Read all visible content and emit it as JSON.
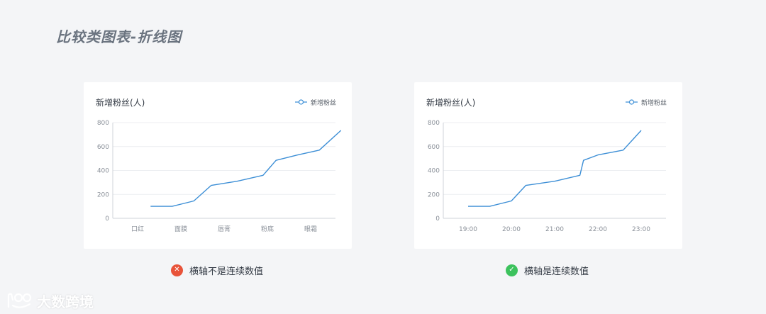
{
  "page": {
    "title": "比较类图表-折线图"
  },
  "colors": {
    "line": "#3d8fd6",
    "grid": "#eceef1",
    "axis": "#cfd3d8",
    "bad": "#e8533a",
    "good": "#3cc25d"
  },
  "panels": [
    {
      "title": "新增粉丝(人)",
      "legend": "新增粉丝",
      "caption": "横轴不是连续数值",
      "caption_icon": "x-mark-icon"
    },
    {
      "title": "新增粉丝(人)",
      "legend": "新增粉丝",
      "caption": "横轴是连续数值",
      "caption_icon": "check-mark-icon"
    }
  ],
  "chart_data": [
    {
      "type": "line",
      "title": "新增粉丝(人)",
      "xlabel": "",
      "ylabel": "",
      "ylim": [
        0,
        800
      ],
      "yticks": [
        "800",
        "600",
        "400",
        "200",
        "0"
      ],
      "x_axis_type": "category",
      "categories": [
        "口红",
        "面膜",
        "唇膏",
        "粉底",
        "眼霜"
      ],
      "series": [
        {
          "name": "新增粉丝",
          "x": [
            0.3,
            0.8,
            1.3,
            1.7,
            2.3,
            2.9,
            3.2,
            3.7,
            4.2,
            4.7
          ],
          "values": [
            100,
            100,
            145,
            275,
            310,
            360,
            485,
            530,
            570,
            735
          ]
        }
      ],
      "grid": true,
      "legend_position": "top-right"
    },
    {
      "type": "line",
      "title": "新增粉丝(人)",
      "xlabel": "",
      "ylabel": "",
      "ylim": [
        0,
        800
      ],
      "yticks": [
        "800",
        "600",
        "400",
        "200",
        "0"
      ],
      "x_axis_type": "time",
      "categories": [
        "19:00",
        "20:00",
        "21:00",
        "22:00",
        "23:00"
      ],
      "series": [
        {
          "name": "新增粉丝",
          "x": [
            "19:00",
            "19:30",
            "20:00",
            "20:20",
            "21:00",
            "21:35",
            "21:40",
            "22:00",
            "22:35",
            "23:00"
          ],
          "values": [
            100,
            100,
            145,
            275,
            310,
            360,
            485,
            530,
            570,
            735
          ]
        }
      ],
      "grid": true,
      "legend_position": "top-right"
    }
  ],
  "watermark": {
    "text": "大数跨境"
  }
}
